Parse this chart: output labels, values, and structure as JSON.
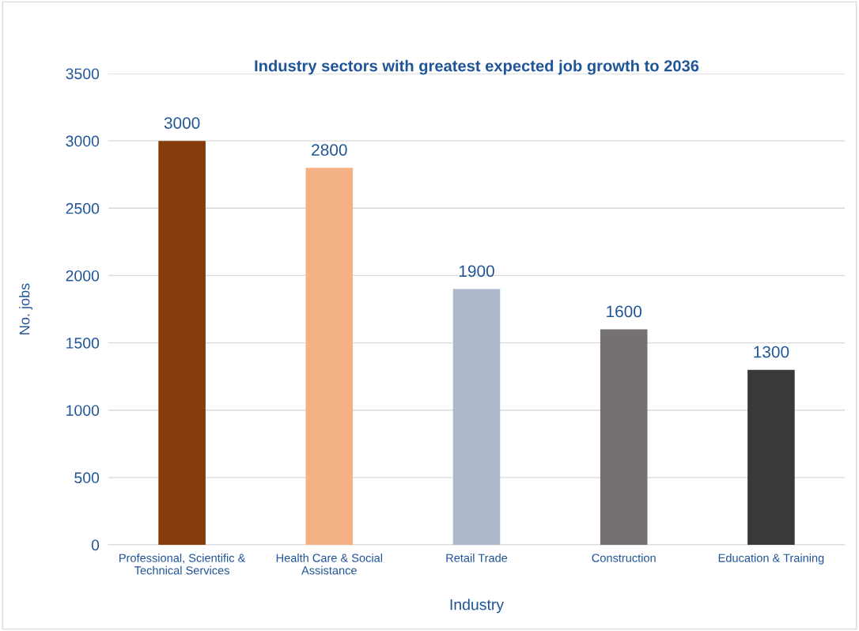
{
  "chart_data": {
    "type": "bar",
    "title": "Industry sectors with greatest expected job growth to 2036",
    "xlabel": "Industry",
    "ylabel": "No. jobs",
    "categories": [
      "Professional, Scientific &\nTechnical Services",
      "Health Care & Social\nAssistance",
      "Retail Trade",
      "Construction",
      "Education & Training"
    ],
    "values": [
      3000,
      2800,
      1900,
      1600,
      1300
    ],
    "colors": [
      "#843c0c",
      "#f4b183",
      "#adb9ca",
      "#767171",
      "#3b3838"
    ],
    "ylim": [
      0,
      3500
    ],
    "yticks": [
      0,
      500,
      1000,
      1500,
      2000,
      2500,
      3000,
      3500
    ],
    "grid": "y",
    "data_labels": true,
    "legend": false
  }
}
